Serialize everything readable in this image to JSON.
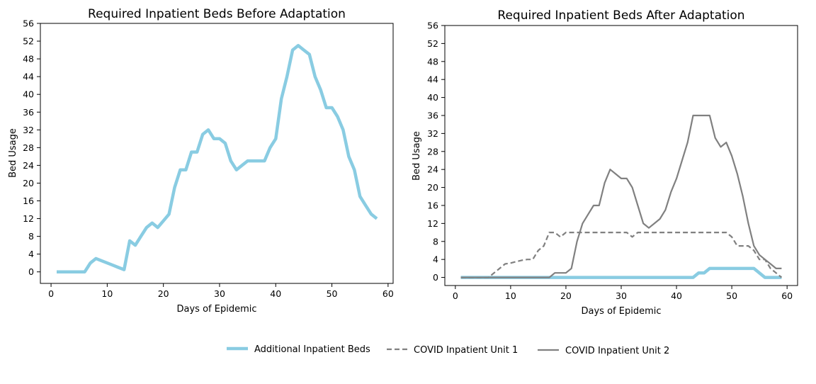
{
  "chart_data": [
    {
      "type": "line",
      "title": "Required Inpatient Beds Before Adaptation",
      "xlabel": "Days of Epidemic",
      "ylabel": "Bed Usage",
      "xlim": [
        -1.9,
        60.9
      ],
      "ylim": [
        -2.6,
        56
      ],
      "xticks": [
        "0",
        "10",
        "20",
        "30",
        "40",
        "50",
        "60"
      ],
      "yticks": [
        "0",
        "4",
        "8",
        "12",
        "16",
        "20",
        "24",
        "28",
        "32",
        "36",
        "40",
        "44",
        "48",
        "52",
        "56"
      ],
      "grid": false,
      "series": [
        {
          "name": "Additional Inpatient Beds",
          "color": "#89CCE2",
          "style": "solid",
          "x": [
            1,
            2,
            3,
            4,
            5,
            6,
            7,
            8,
            9,
            10,
            11,
            12,
            13,
            14,
            15,
            16,
            17,
            18,
            19,
            20,
            21,
            22,
            23,
            24,
            25,
            26,
            27,
            28,
            29,
            30,
            31,
            32,
            33,
            34,
            35,
            36,
            37,
            38,
            39,
            40,
            41,
            42,
            43,
            44,
            45,
            46,
            47,
            48,
            49,
            50,
            51,
            52,
            53,
            54,
            55,
            56,
            57,
            58
          ],
          "y": [
            0,
            0,
            0,
            0,
            0,
            0,
            2,
            3,
            2.5,
            2,
            1.5,
            1,
            0.5,
            7,
            6,
            8,
            10,
            11,
            10,
            11.5,
            13,
            19,
            23,
            23,
            27,
            27,
            31,
            32,
            30,
            30,
            29,
            25,
            23,
            24,
            25,
            25,
            25,
            25,
            28,
            30,
            39,
            44,
            50,
            51,
            50,
            49,
            44,
            41,
            37,
            37,
            35,
            32,
            26,
            23,
            17,
            15,
            13,
            12
          ]
        }
      ]
    },
    {
      "type": "line",
      "title": "Required Inpatient Beds After Adaptation",
      "xlabel": "Days of Epidemic",
      "ylabel": "Bed Usage",
      "xlim": [
        -1.9,
        61.9
      ],
      "ylim": [
        -1.8,
        56
      ],
      "xticks": [
        "0",
        "10",
        "20",
        "30",
        "40",
        "50",
        "60"
      ],
      "yticks": [
        "0",
        "4",
        "8",
        "12",
        "16",
        "20",
        "24",
        "28",
        "32",
        "36",
        "40",
        "44",
        "48",
        "52",
        "56"
      ],
      "grid": false,
      "series": [
        {
          "name": "Additional Inpatient Beds",
          "color": "#89CCE2",
          "style": "solid",
          "x": [
            1,
            2,
            3,
            4,
            5,
            6,
            7,
            8,
            9,
            10,
            11,
            12,
            13,
            14,
            15,
            16,
            17,
            18,
            19,
            20,
            21,
            22,
            23,
            24,
            25,
            26,
            27,
            28,
            29,
            30,
            31,
            32,
            33,
            34,
            35,
            36,
            37,
            38,
            39,
            40,
            41,
            42,
            43,
            44,
            45,
            46,
            47,
            48,
            49,
            50,
            51,
            52,
            53,
            54,
            55,
            56,
            57,
            58,
            59
          ],
          "y": [
            0,
            0,
            0,
            0,
            0,
            0,
            0,
            0,
            0,
            0,
            0,
            0,
            0,
            0,
            0,
            0,
            0,
            0,
            0,
            0,
            0,
            0,
            0,
            0,
            0,
            0,
            0,
            0,
            0,
            0,
            0,
            0,
            0,
            0,
            0,
            0,
            0,
            0,
            0,
            0,
            0,
            0,
            0,
            1,
            1,
            2,
            2,
            2,
            2,
            2,
            2,
            2,
            2,
            2,
            1,
            0,
            0,
            0,
            0
          ]
        },
        {
          "name": "COVID Inpatient Unit 1",
          "color": "#808080",
          "style": "dashed",
          "x": [
            1,
            2,
            3,
            4,
            5,
            6,
            7,
            8,
            9,
            10,
            11,
            12,
            13,
            14,
            15,
            16,
            17,
            18,
            19,
            20,
            21,
            22,
            23,
            24,
            25,
            26,
            27,
            28,
            29,
            30,
            31,
            32,
            33,
            34,
            35,
            36,
            37,
            38,
            39,
            40,
            41,
            42,
            43,
            44,
            45,
            46,
            47,
            48,
            49,
            50,
            51,
            52,
            53,
            54,
            55,
            56,
            57,
            58,
            59
          ],
          "y": [
            0,
            0,
            0,
            0,
            0,
            0,
            1,
            2,
            3,
            3.2,
            3.5,
            3.8,
            4,
            4,
            6,
            7,
            10,
            10,
            9,
            10,
            10,
            10,
            10,
            10,
            10,
            10,
            10,
            10,
            10,
            10,
            10,
            9,
            10,
            10,
            10,
            10,
            10,
            10,
            10,
            10,
            10,
            10,
            10,
            10,
            10,
            10,
            10,
            10,
            10,
            9,
            7,
            7,
            7,
            6,
            4,
            4,
            2,
            1,
            0
          ]
        },
        {
          "name": "COVID Inpatient Unit 2",
          "color": "#808080",
          "style": "solid",
          "x": [
            1,
            2,
            3,
            4,
            5,
            6,
            7,
            8,
            9,
            10,
            11,
            12,
            13,
            14,
            15,
            16,
            17,
            18,
            19,
            20,
            21,
            22,
            23,
            24,
            25,
            26,
            27,
            28,
            29,
            30,
            31,
            32,
            33,
            34,
            35,
            36,
            37,
            38,
            39,
            40,
            41,
            42,
            43,
            44,
            45,
            46,
            47,
            48,
            49,
            50,
            51,
            52,
            53,
            54,
            55,
            56,
            57,
            58,
            59
          ],
          "y": [
            0,
            0,
            0,
            0,
            0,
            0,
            0,
            0,
            0,
            0,
            0,
            0,
            0,
            0,
            0,
            0,
            0,
            1,
            1,
            1,
            2,
            8,
            12,
            14,
            16,
            16,
            21,
            24,
            23,
            22,
            22,
            20,
            16,
            12,
            11,
            12,
            13,
            15,
            19,
            22,
            26,
            30,
            36,
            36,
            36,
            36,
            31,
            29,
            30,
            27,
            23,
            18,
            12,
            7,
            5,
            4,
            3,
            2,
            2
          ]
        }
      ]
    }
  ],
  "legend": {
    "placement": "bottom-center",
    "entries": [
      {
        "label": "Additional Inpatient Beds",
        "color": "#89CCE2",
        "style": "solid"
      },
      {
        "label": "COVID Inpatient Unit 1",
        "color": "#808080",
        "style": "dashed"
      },
      {
        "label": "COVID Inpatient Unit 2",
        "color": "#808080",
        "style": "solid"
      }
    ]
  }
}
